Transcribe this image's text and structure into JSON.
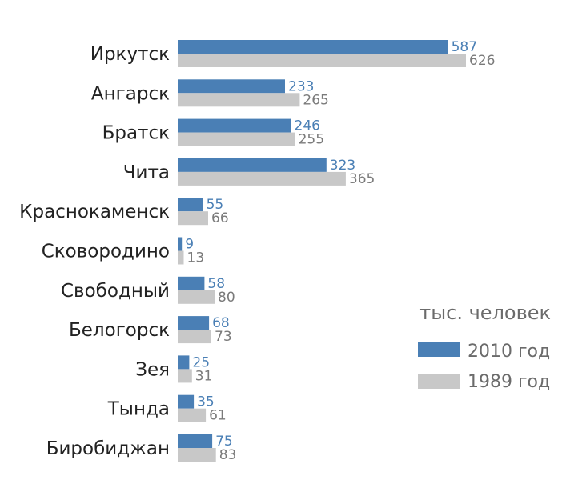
{
  "chart_data": {
    "type": "bar",
    "orientation": "horizontal",
    "unit_label": "тыс. человек",
    "categories": [
      "Иркутск",
      "Ангарск",
      "Братск",
      "Чита",
      "Краснокаменск",
      "Сковородино",
      "Свободный",
      "Белогорск",
      "Зея",
      "Тында",
      "Биробиджан"
    ],
    "series": [
      {
        "name": "2010 год",
        "color": "#4a7fb5",
        "values": [
          587,
          233,
          246,
          323,
          55,
          9,
          58,
          68,
          25,
          35,
          75
        ]
      },
      {
        "name": "1989 год",
        "color": "#c8c8c8",
        "values": [
          626,
          265,
          255,
          365,
          66,
          13,
          80,
          73,
          31,
          61,
          83
        ]
      }
    ],
    "value_label_colors": [
      "#4a7fb5",
      "#7a7a7a"
    ],
    "xlim": [
      0,
      626
    ],
    "grid": false,
    "legend_position": "right"
  }
}
